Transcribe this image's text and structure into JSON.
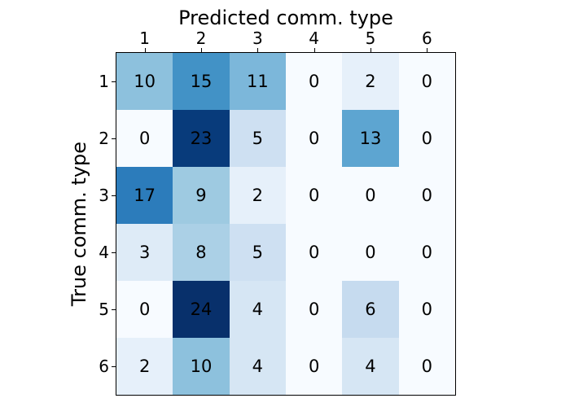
{
  "chart_data": {
    "type": "heatmap",
    "title": "",
    "xlabel": "Predicted comm. type",
    "ylabel": "True comm. type",
    "xlabel_position": "top",
    "ylabel_position": "left",
    "x_tick_labels": [
      "1",
      "2",
      "3",
      "4",
      "5",
      "6"
    ],
    "y_tick_labels": [
      "1",
      "2",
      "3",
      "4",
      "5",
      "6"
    ],
    "matrix": [
      [
        10,
        15,
        11,
        0,
        2,
        0
      ],
      [
        0,
        23,
        5,
        0,
        13,
        0
      ],
      [
        17,
        9,
        2,
        0,
        0,
        0
      ],
      [
        3,
        8,
        5,
        0,
        0,
        0
      ],
      [
        0,
        24,
        4,
        0,
        6,
        0
      ],
      [
        2,
        10,
        4,
        0,
        4,
        0
      ]
    ],
    "colormap": "Blues",
    "vmin": 0,
    "vmax": 24,
    "value_colors": {
      "0": "#f7fbff",
      "2": "#e6f0fa",
      "3": "#deebf7",
      "4": "#d6e6f4",
      "5": "#cee0f2",
      "6": "#c6dbef",
      "8": "#abd0e6",
      "9": "#9ecae1",
      "10": "#8dc1dd",
      "11": "#7cb7da",
      "13": "#5da5d1",
      "15": "#4292c6",
      "17": "#2c7cbb",
      "23": "#083b7b",
      "24": "#08306b"
    },
    "cell_text_color": "#000000",
    "spine_color": "#000000",
    "background_color": "#ffffff",
    "grid": false,
    "legend": "none"
  }
}
